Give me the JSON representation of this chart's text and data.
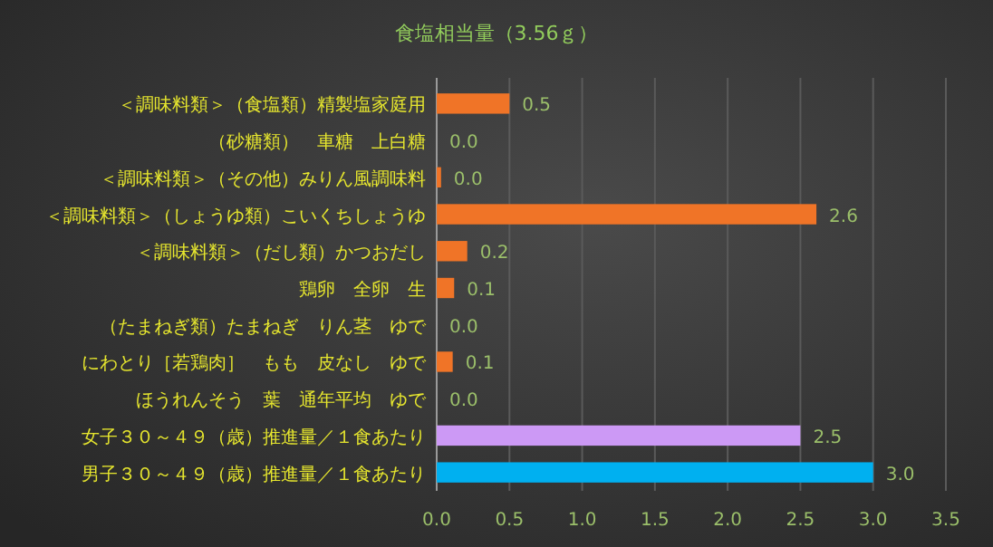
{
  "chart_data": {
    "type": "bar",
    "orientation": "horizontal",
    "title": "食塩相当量（3.56ｇ）",
    "categories": [
      "＜調味料類＞（食塩類）精製塩家庭用",
      "（砂糖類）　車糖　上白糖",
      "＜調味料類＞（その他）みりん風調味料",
      "＜調味料類＞（しょうゆ類）こいくちしょうゆ",
      "＜調味料類＞（だし類）かつおだし",
      "鶏卵　全卵　生",
      "（たまねぎ類）たまねぎ　りん茎　ゆで",
      "にわとり［若鶏肉］　もも　皮なし　ゆで",
      "ほうれんそう　葉　通年平均　ゆで",
      "女子３０～４９（歳）推進量／１食あたり",
      "男子３０～４９（歳）推進量／１食あたり"
    ],
    "values": [
      0.5,
      0,
      0.03,
      2.61,
      0.21,
      0.12,
      0,
      0.11,
      0,
      2.5,
      3.0
    ],
    "value_labels": [
      "0.5",
      "0.0",
      "0.0",
      "2.6",
      "0.2",
      "0.1",
      "0.0",
      "0.1",
      "0.0",
      "2.5",
      "3.0"
    ],
    "colors": [
      "#f07427",
      "#f07427",
      "#f07427",
      "#f07427",
      "#f07427",
      "#f07427",
      "#f07427",
      "#f07427",
      "#f07427",
      "#cc99f5",
      "#00b0f0"
    ],
    "xlim": [
      0,
      3.5
    ],
    "xticks": [
      {
        "value": 0,
        "label": "0.0"
      },
      {
        "value": 0.5,
        "label": "0.5"
      },
      {
        "value": 1,
        "label": "1.0"
      },
      {
        "value": 1.5,
        "label": "1.5"
      },
      {
        "value": 2,
        "label": "2.0"
      },
      {
        "value": 2.5,
        "label": "2.5"
      },
      {
        "value": 3,
        "label": "3.0"
      },
      {
        "value": 3.5,
        "label": "3.5"
      }
    ],
    "grid": "x"
  }
}
